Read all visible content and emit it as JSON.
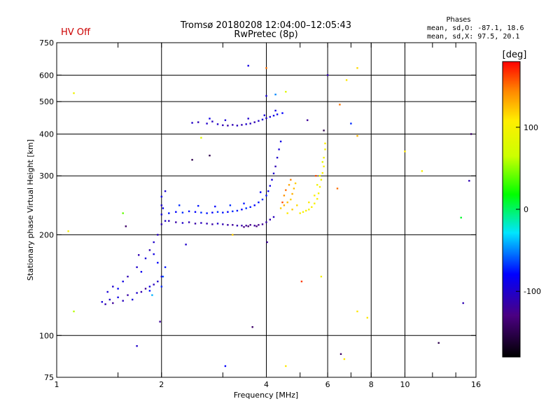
{
  "header": {
    "status": "HV Off",
    "status_color": "#cc0000",
    "title_line1": "Tromsø 20180208 12:04:00–12:05:43",
    "title_line2": "RwPretec (8p)"
  },
  "stats": {
    "heading": "Phases",
    "line1": "mean, sd,O: -87.1, 18.6",
    "line2": "mean, sd,X:  97.5, 20.1"
  },
  "chart_data": {
    "type": "scatter",
    "xlabel": "Frequency [MHz]",
    "ylabel": "Stationary phase Virtual Height [km]",
    "x_scale": "log2",
    "y_scale": "log",
    "xlim": [
      1,
      16
    ],
    "ylim": [
      75,
      750
    ],
    "x_ticks": [
      1,
      2,
      4,
      6,
      8,
      10,
      16
    ],
    "x_tick_labels": [
      "1",
      "2",
      "4",
      "6",
      "8",
      "10",
      "16"
    ],
    "x_minor_ticks": [
      1.5,
      3,
      5,
      7,
      12,
      14
    ],
    "x_gridlines": [
      2,
      4,
      6,
      8,
      10
    ],
    "y_ticks": [
      75,
      100,
      200,
      300,
      400,
      500,
      600,
      750
    ],
    "y_tick_labels": [
      "75",
      "100",
      "200",
      "300",
      "400",
      "500",
      "600",
      "750"
    ],
    "y_gridlines": [
      100,
      200,
      300,
      400,
      500,
      600
    ],
    "colorbar": {
      "label": "[deg]",
      "ticks": [
        100,
        0,
        -100
      ],
      "tick_labels": [
        "100",
        "0",
        "-100"
      ],
      "range": [
        -180,
        180
      ]
    },
    "series": [
      {
        "points": [
          [
            1.35,
            126,
            -95
          ],
          [
            1.38,
            124,
            -110
          ],
          [
            1.42,
            128,
            -100
          ],
          [
            1.45,
            125,
            -120
          ],
          [
            1.5,
            130,
            -90
          ],
          [
            1.55,
            127,
            -105
          ],
          [
            1.6,
            132,
            -115
          ],
          [
            1.65,
            128,
            -95
          ],
          [
            1.7,
            134,
            -100
          ],
          [
            1.75,
            135,
            -110
          ],
          [
            1.8,
            138,
            -120
          ],
          [
            1.85,
            140,
            -90
          ],
          [
            1.9,
            142,
            -105
          ],
          [
            1.95,
            145,
            -100
          ],
          [
            2.0,
            150,
            -95
          ],
          [
            1.45,
            140,
            -100
          ],
          [
            1.55,
            145,
            -90
          ],
          [
            1.6,
            150,
            -110
          ],
          [
            1.7,
            160,
            -100
          ],
          [
            1.8,
            170,
            -95
          ],
          [
            1.85,
            180,
            -110
          ],
          [
            1.9,
            190,
            -100
          ],
          [
            1.95,
            200,
            -105
          ],
          [
            2.0,
            215,
            -110
          ],
          [
            2.0,
            230,
            -95
          ],
          [
            2.0,
            245,
            -100
          ],
          [
            2.0,
            260,
            -90
          ],
          [
            2.02,
            240,
            -85
          ],
          [
            2.05,
            220,
            -100
          ],
          [
            2.05,
            270,
            -95
          ],
          [
            1.4,
            135,
            -95
          ],
          [
            1.5,
            138,
            -80
          ],
          [
            1.75,
            155,
            -85
          ],
          [
            1.9,
            175,
            -90
          ],
          [
            1.95,
            165,
            -80
          ],
          [
            2.0,
            140,
            -70
          ],
          [
            2.02,
            150,
            -60
          ],
          [
            2.05,
            160,
            -75
          ],
          [
            1.85,
            136,
            -75
          ],
          [
            1.88,
            132,
            -40
          ]
        ]
      },
      {
        "points": [
          [
            2.1,
            220,
            -110
          ],
          [
            2.2,
            218,
            -115
          ],
          [
            2.3,
            217,
            -100
          ],
          [
            2.4,
            218,
            -110
          ],
          [
            2.5,
            216,
            -115
          ],
          [
            2.6,
            217,
            -105
          ],
          [
            2.7,
            216,
            -110
          ],
          [
            2.8,
            215,
            -115
          ],
          [
            2.9,
            216,
            -100
          ],
          [
            3.0,
            215,
            -110
          ],
          [
            3.1,
            214,
            -115
          ],
          [
            3.2,
            214,
            -120
          ],
          [
            3.3,
            213,
            -110
          ],
          [
            3.4,
            213,
            -115
          ],
          [
            3.5,
            213,
            -120
          ],
          [
            3.6,
            214,
            -125
          ],
          [
            3.7,
            213,
            -120
          ],
          [
            3.8,
            214,
            -125
          ],
          [
            3.9,
            215,
            -120
          ],
          [
            4.0,
            218,
            -115
          ],
          [
            4.1,
            222,
            -110
          ],
          [
            4.2,
            226,
            -105
          ],
          [
            3.45,
            211,
            -130
          ],
          [
            3.55,
            212,
            -135
          ],
          [
            3.75,
            212,
            -130
          ]
        ]
      },
      {
        "points": [
          [
            2.1,
            232,
            -75
          ],
          [
            2.2,
            234,
            -80
          ],
          [
            2.3,
            233,
            -70
          ],
          [
            2.4,
            235,
            -75
          ],
          [
            2.5,
            234,
            -80
          ],
          [
            2.6,
            233,
            -70
          ],
          [
            2.7,
            232,
            -75
          ],
          [
            2.8,
            233,
            -80
          ],
          [
            2.9,
            234,
            -70
          ],
          [
            3.0,
            233,
            -75
          ],
          [
            3.1,
            234,
            -80
          ],
          [
            3.2,
            235,
            -70
          ],
          [
            3.3,
            236,
            -75
          ],
          [
            3.4,
            238,
            -80
          ],
          [
            3.5,
            240,
            -70
          ],
          [
            3.6,
            242,
            -75
          ],
          [
            3.7,
            245,
            -80
          ],
          [
            3.8,
            250,
            -75
          ],
          [
            3.9,
            255,
            -70
          ],
          [
            4.0,
            262,
            -75
          ],
          [
            4.05,
            270,
            -85
          ],
          [
            4.1,
            280,
            -90
          ],
          [
            4.15,
            292,
            -95
          ],
          [
            4.2,
            305,
            -100
          ],
          [
            4.25,
            320,
            -110
          ],
          [
            4.3,
            340,
            -100
          ],
          [
            4.35,
            360,
            -95
          ],
          [
            4.4,
            380,
            -90
          ],
          [
            2.25,
            245,
            -70
          ],
          [
            2.55,
            244,
            -75
          ],
          [
            2.85,
            243,
            -80
          ],
          [
            3.15,
            245,
            -70
          ],
          [
            3.45,
            248,
            -75
          ],
          [
            3.85,
            268,
            -80
          ]
        ]
      },
      {
        "points": [
          [
            2.45,
            432,
            -100
          ],
          [
            2.55,
            434,
            -110
          ],
          [
            2.7,
            430,
            -100
          ],
          [
            2.8,
            436,
            -105
          ],
          [
            2.9,
            428,
            -100
          ],
          [
            3.0,
            425,
            -110
          ],
          [
            3.1,
            424,
            -115
          ],
          [
            3.2,
            426,
            -110
          ],
          [
            3.3,
            424,
            -105
          ],
          [
            3.4,
            426,
            -110
          ],
          [
            3.5,
            428,
            -100
          ],
          [
            3.6,
            430,
            -105
          ],
          [
            3.7,
            434,
            -110
          ],
          [
            3.8,
            438,
            -100
          ],
          [
            3.9,
            442,
            -95
          ],
          [
            4.0,
            446,
            -100
          ],
          [
            4.1,
            450,
            -95
          ],
          [
            4.2,
            454,
            -90
          ],
          [
            4.3,
            458,
            -85
          ],
          [
            4.45,
            462,
            -80
          ],
          [
            2.75,
            445,
            -90
          ],
          [
            3.05,
            440,
            -95
          ],
          [
            3.55,
            445,
            -100
          ],
          [
            3.95,
            455,
            -95
          ],
          [
            4.25,
            470,
            -90
          ]
        ]
      },
      {
        "points": [
          [
            4.4,
            240,
            120
          ],
          [
            4.5,
            245,
            130
          ],
          [
            4.6,
            250,
            125
          ],
          [
            4.7,
            255,
            120
          ],
          [
            4.75,
            265,
            130
          ],
          [
            4.8,
            275,
            125
          ],
          [
            4.85,
            285,
            120
          ],
          [
            4.6,
            232,
            110
          ],
          [
            4.75,
            238,
            120
          ],
          [
            4.9,
            245,
            115
          ],
          [
            4.5,
            262,
            140
          ],
          [
            4.55,
            272,
            150
          ],
          [
            4.65,
            282,
            135
          ],
          [
            4.7,
            292,
            145
          ],
          [
            4.45,
            250,
            160
          ]
        ]
      },
      {
        "points": [
          [
            5.0,
            232,
            105
          ],
          [
            5.1,
            234,
            100
          ],
          [
            5.2,
            236,
            105
          ],
          [
            5.3,
            238,
            100
          ],
          [
            5.4,
            242,
            105
          ],
          [
            5.5,
            248,
            100
          ],
          [
            5.6,
            256,
            105
          ],
          [
            5.65,
            266,
            100
          ],
          [
            5.7,
            278,
            105
          ],
          [
            5.75,
            292,
            100
          ],
          [
            5.8,
            306,
            105
          ],
          [
            5.85,
            320,
            100
          ],
          [
            5.85,
            340,
            95
          ],
          [
            5.9,
            360,
            100
          ],
          [
            5.9,
            375,
            105
          ],
          [
            5.3,
            250,
            110
          ],
          [
            5.5,
            262,
            105
          ],
          [
            5.6,
            282,
            95
          ],
          [
            5.7,
            300,
            90
          ],
          [
            5.8,
            330,
            85
          ]
        ]
      },
      {
        "points": [
          [
            1.12,
            530,
            95
          ],
          [
            1.08,
            205,
            100
          ],
          [
            1.12,
            118,
            60
          ],
          [
            1.55,
            232,
            40
          ],
          [
            1.58,
            212,
            -140
          ],
          [
            1.72,
            174,
            -110
          ],
          [
            1.7,
            93,
            -100
          ],
          [
            1.98,
            110,
            -120
          ],
          [
            2.35,
            187,
            -100
          ],
          [
            2.45,
            335,
            -150
          ],
          [
            2.6,
            390,
            80
          ],
          [
            2.75,
            345,
            -150
          ],
          [
            3.05,
            81,
            -80
          ],
          [
            3.55,
            640,
            -90
          ],
          [
            3.65,
            106,
            -140
          ],
          [
            4.0,
            630,
            150
          ],
          [
            4.0,
            520,
            -95
          ],
          [
            4.02,
            190,
            -120
          ],
          [
            4.25,
            525,
            -50
          ],
          [
            4.55,
            535,
            80
          ],
          [
            4.55,
            81,
            110
          ],
          [
            5.25,
            440,
            -120
          ],
          [
            5.55,
            300,
            160
          ],
          [
            5.75,
            150,
            100
          ],
          [
            5.85,
            410,
            -150
          ],
          [
            6.0,
            600,
            -110
          ],
          [
            6.5,
            490,
            150
          ],
          [
            6.55,
            88,
            -140
          ],
          [
            6.7,
            85,
            110
          ],
          [
            6.8,
            580,
            110
          ],
          [
            7.0,
            430,
            -70
          ],
          [
            7.3,
            630,
            115
          ],
          [
            7.3,
            395,
            130
          ],
          [
            7.3,
            118,
            110
          ],
          [
            7.8,
            113,
            110
          ],
          [
            10.0,
            355,
            110
          ],
          [
            11.2,
            310,
            100
          ],
          [
            12.5,
            95,
            -150
          ],
          [
            14.5,
            225,
            10
          ],
          [
            14.7,
            125,
            -110
          ],
          [
            15.3,
            290,
            -110
          ],
          [
            15.5,
            400,
            -140
          ],
          [
            6.4,
            275,
            150
          ],
          [
            5.05,
            145,
            165
          ],
          [
            3.2,
            200,
            120
          ]
        ]
      }
    ]
  }
}
